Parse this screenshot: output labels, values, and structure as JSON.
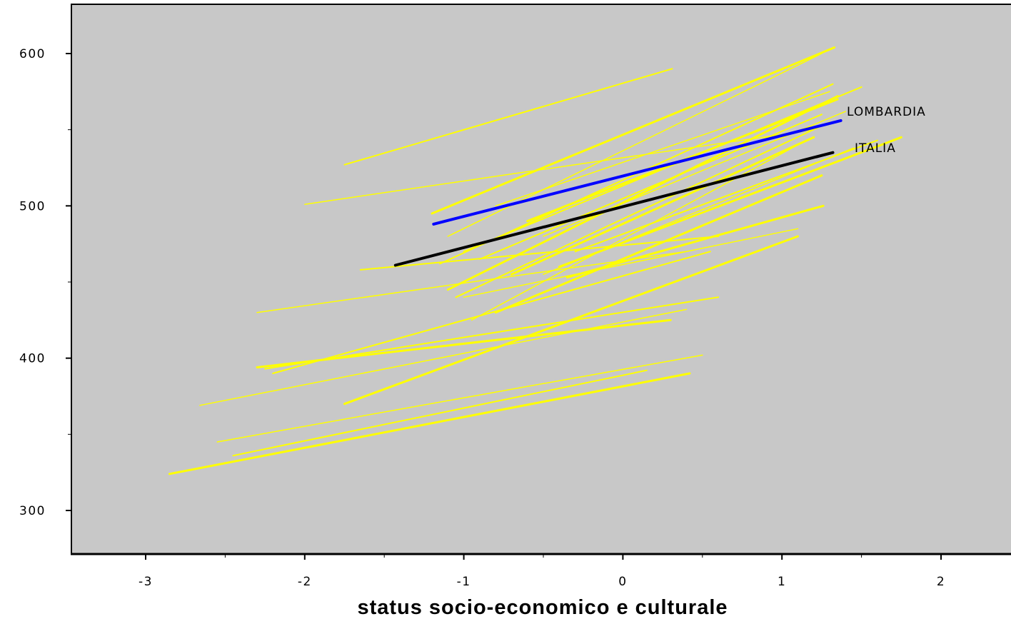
{
  "chart_data": {
    "type": "line",
    "title": "",
    "xlabel": "status socio-economico e culturale",
    "ylabel": "",
    "xlim": [
      -3.45,
      2.45
    ],
    "ylim": [
      272,
      632
    ],
    "x_ticks": [
      -3,
      -2,
      -1,
      0,
      1,
      2
    ],
    "x_tick_labels": [
      "-3",
      "-2",
      "-1",
      "0",
      "1",
      "2"
    ],
    "y_ticks": [
      300,
      400,
      500,
      600
    ],
    "y_tick_labels": [
      "300",
      "400",
      "500",
      "600"
    ],
    "grid": false,
    "legend": "none",
    "background_color": "#c8c8c8",
    "colors": {
      "regions": "#ffff00",
      "lombardia": "#0000ff",
      "italia": "#000000"
    },
    "series": [
      {
        "name": "LOMBARDIA",
        "role": "highlight",
        "color": "#0000ff",
        "x": [
          -1.19,
          1.37
        ],
        "y": [
          488,
          556
        ]
      },
      {
        "name": "ITALIA",
        "role": "highlight",
        "color": "#000000",
        "x": [
          -1.43,
          1.32
        ],
        "y": [
          461,
          535
        ]
      },
      {
        "role": "region",
        "x": [
          -1.75,
          0.31
        ],
        "y": [
          527,
          590
        ]
      },
      {
        "role": "region",
        "x": [
          -2.0,
          1.2
        ],
        "y": [
          501,
          550
        ]
      },
      {
        "role": "region",
        "x": [
          -1.2,
          1.33
        ],
        "y": [
          495,
          604
        ]
      },
      {
        "role": "region",
        "x": [
          -1.1,
          1.25
        ],
        "y": [
          480,
          600
        ]
      },
      {
        "role": "region",
        "x": [
          -1.15,
          1.32
        ],
        "y": [
          462,
          580
        ]
      },
      {
        "role": "region",
        "x": [
          -1.1,
          1.35
        ],
        "y": [
          445,
          572
        ]
      },
      {
        "role": "region",
        "x": [
          -1.0,
          1.5
        ],
        "y": [
          470,
          578
        ]
      },
      {
        "role": "region",
        "x": [
          -0.8,
          1.3
        ],
        "y": [
          500,
          575
        ]
      },
      {
        "role": "region",
        "x": [
          -0.6,
          1.35
        ],
        "y": [
          490,
          570
        ]
      },
      {
        "role": "region",
        "x": [
          -0.5,
          1.4
        ],
        "y": [
          480,
          562
        ]
      },
      {
        "role": "region",
        "x": [
          -0.9,
          1.25
        ],
        "y": [
          465,
          560
        ]
      },
      {
        "role": "region",
        "x": [
          -0.7,
          1.2
        ],
        "y": [
          455,
          545
        ]
      },
      {
        "role": "region",
        "x": [
          -1.05,
          1.3
        ],
        "y": [
          440,
          555
        ]
      },
      {
        "role": "region",
        "x": [
          -0.95,
          1.1
        ],
        "y": [
          425,
          540
        ]
      },
      {
        "role": "region",
        "x": [
          -0.8,
          1.25
        ],
        "y": [
          430,
          520
        ]
      },
      {
        "role": "region",
        "x": [
          -0.5,
          1.45
        ],
        "y": [
          455,
          538
        ]
      },
      {
        "role": "region",
        "x": [
          -0.3,
          1.6
        ],
        "y": [
          470,
          543
        ]
      },
      {
        "role": "region",
        "x": [
          -0.4,
          1.75
        ],
        "y": [
          460,
          545
        ]
      },
      {
        "role": "region",
        "x": [
          -1.65,
          0.6
        ],
        "y": [
          458,
          480
        ]
      },
      {
        "role": "region",
        "x": [
          -2.3,
          0.4
        ],
        "y": [
          430,
          470
        ]
      },
      {
        "role": "region",
        "x": [
          -0.35,
          1.26
        ],
        "y": [
          453,
          500
        ]
      },
      {
        "role": "region",
        "x": [
          -1.0,
          1.1
        ],
        "y": [
          440,
          485
        ]
      },
      {
        "role": "region",
        "x": [
          -2.25,
          0.6
        ],
        "y": [
          393,
          440
        ]
      },
      {
        "role": "region",
        "x": [
          -2.3,
          0.3
        ],
        "y": [
          394,
          425
        ]
      },
      {
        "role": "region",
        "x": [
          -2.2,
          0.55
        ],
        "y": [
          390,
          470
        ]
      },
      {
        "role": "region",
        "x": [
          -2.66,
          0.4
        ],
        "y": [
          369,
          432
        ]
      },
      {
        "role": "region",
        "x": [
          -1.75,
          1.1
        ],
        "y": [
          370,
          480
        ]
      },
      {
        "role": "region",
        "x": [
          -2.55,
          0.5
        ],
        "y": [
          345,
          402
        ]
      },
      {
        "role": "region",
        "x": [
          -2.45,
          0.15
        ],
        "y": [
          336,
          392
        ]
      },
      {
        "role": "region",
        "x": [
          -2.85,
          0.42
        ],
        "y": [
          324,
          390
        ]
      }
    ],
    "annotations": [
      "LOMBARDIA",
      "ITALIA"
    ]
  }
}
